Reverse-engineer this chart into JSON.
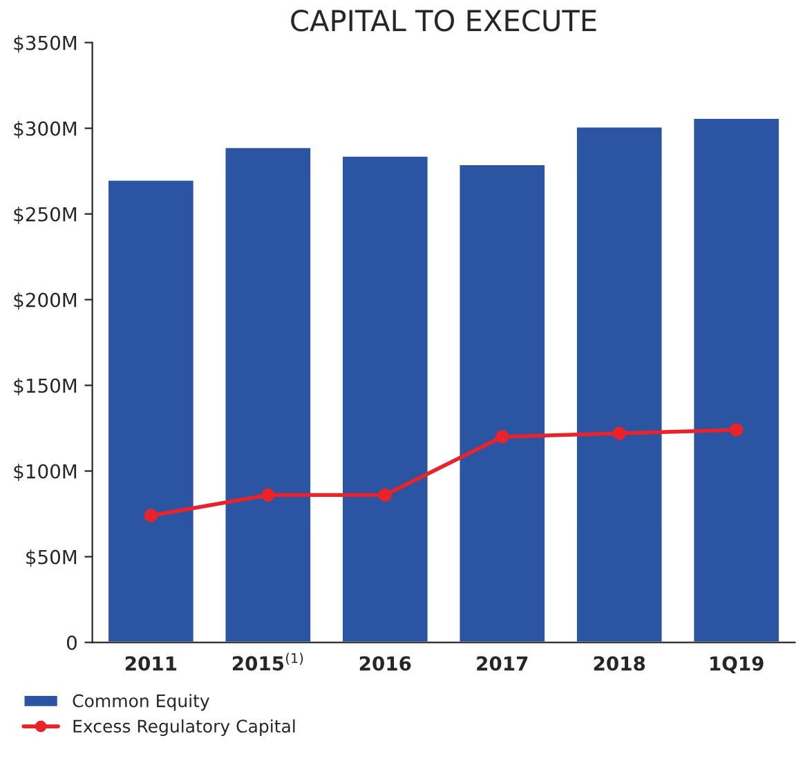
{
  "chart_data": {
    "type": "bar",
    "title": "CAPITAL TO EXECUTE",
    "categories": [
      "2011",
      "2015$^{(1)}$",
      "2016",
      "2017",
      "2018",
      "1Q19"
    ],
    "series": [
      {
        "name": "Common Equity",
        "color": "#2b55a3",
        "values": [
          270,
          289,
          284,
          279,
          301,
          306
        ]
      },
      {
        "name": "Excess Regulatory Capital",
        "type": "line",
        "color": "#e8232a",
        "marker": "circle",
        "values": [
          74,
          86,
          86,
          120,
          122,
          124
        ]
      }
    ],
    "ylim": [
      0,
      350
    ],
    "yticks": [
      {
        "value": 0,
        "label": "0"
      },
      {
        "value": 50,
        "label": "$50M"
      },
      {
        "value": 100,
        "label": "$100M"
      },
      {
        "value": 150,
        "label": "$150M"
      },
      {
        "value": 200,
        "label": "$200M"
      },
      {
        "value": 250,
        "label": "$250M"
      },
      {
        "value": 300,
        "label": "$300M"
      },
      {
        "value": 350,
        "label": "$350M"
      }
    ],
    "grid": false,
    "legend": "bottom left"
  }
}
